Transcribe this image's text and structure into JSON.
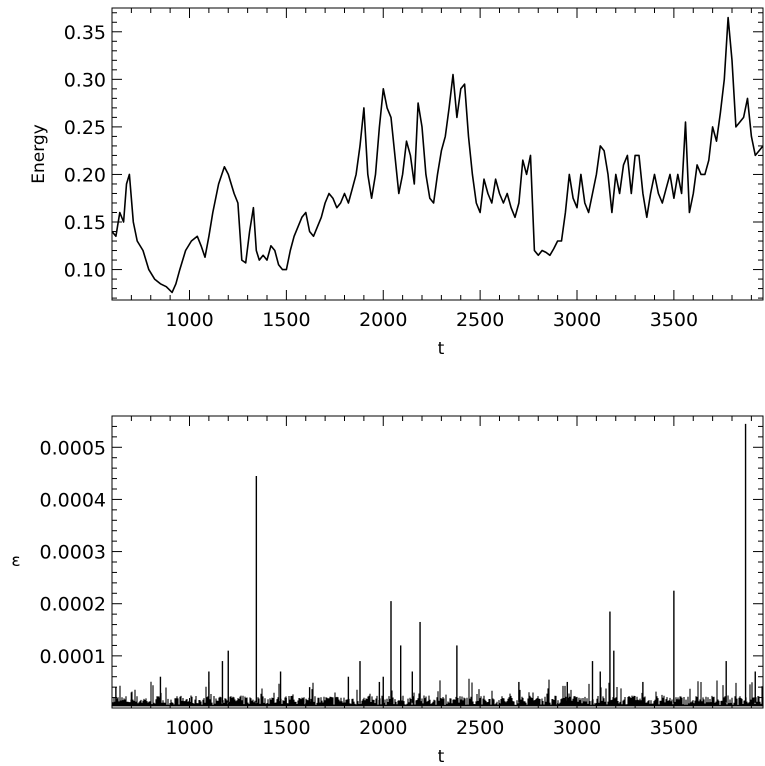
{
  "chart_data": [
    {
      "type": "line",
      "title": "",
      "xlabel": "t",
      "ylabel": "Energy",
      "xlim": [
        600,
        3960
      ],
      "ylim": [
        0.068,
        0.375
      ],
      "xticks": [
        1000,
        1500,
        2000,
        2500,
        3000,
        3500
      ],
      "xtick_labels": [
        "1000",
        "1500",
        "2000",
        "2500",
        "3000",
        "3500"
      ],
      "yticks": [
        0.1,
        0.15,
        0.2,
        0.25,
        0.3,
        0.35
      ],
      "ytick_labels": [
        "0.10",
        "0.15",
        "0.20",
        "0.25",
        "0.30",
        "0.35"
      ],
      "grid": false,
      "series": [
        {
          "x": [
            600,
            620,
            640,
            660,
            675,
            690,
            710,
            730,
            760,
            790,
            820,
            850,
            880,
            910,
            930,
            950,
            980,
            1010,
            1040,
            1060,
            1080,
            1100,
            1120,
            1150,
            1180,
            1200,
            1215,
            1230,
            1250,
            1270,
            1290,
            1310,
            1330,
            1345,
            1360,
            1380,
            1400,
            1420,
            1440,
            1460,
            1480,
            1500,
            1520,
            1540,
            1560,
            1580,
            1600,
            1620,
            1640,
            1660,
            1680,
            1700,
            1720,
            1740,
            1760,
            1780,
            1800,
            1820,
            1840,
            1860,
            1880,
            1900,
            1920,
            1940,
            1960,
            1980,
            2000,
            2020,
            2040,
            2060,
            2080,
            2100,
            2120,
            2140,
            2160,
            2180,
            2200,
            2220,
            2240,
            2260,
            2280,
            2300,
            2320,
            2340,
            2360,
            2380,
            2400,
            2420,
            2440,
            2460,
            2480,
            2500,
            2520,
            2540,
            2560,
            2580,
            2600,
            2620,
            2640,
            2660,
            2680,
            2700,
            2720,
            2740,
            2760,
            2780,
            2800,
            2820,
            2840,
            2860,
            2880,
            2900,
            2920,
            2940,
            2960,
            2980,
            3000,
            3020,
            3040,
            3060,
            3080,
            3100,
            3120,
            3140,
            3160,
            3180,
            3200,
            3220,
            3240,
            3260,
            3280,
            3300,
            3320,
            3340,
            3360,
            3380,
            3400,
            3420,
            3440,
            3460,
            3480,
            3500,
            3520,
            3540,
            3560,
            3580,
            3600,
            3620,
            3640,
            3660,
            3680,
            3700,
            3720,
            3740,
            3760,
            3780,
            3800,
            3820,
            3840,
            3860,
            3880,
            3900,
            3920,
            3940,
            3960
          ],
          "y": [
            0.14,
            0.135,
            0.16,
            0.15,
            0.19,
            0.2,
            0.15,
            0.13,
            0.12,
            0.1,
            0.09,
            0.085,
            0.082,
            0.076,
            0.085,
            0.1,
            0.12,
            0.13,
            0.135,
            0.125,
            0.113,
            0.135,
            0.16,
            0.19,
            0.208,
            0.2,
            0.19,
            0.18,
            0.17,
            0.11,
            0.107,
            0.14,
            0.165,
            0.12,
            0.11,
            0.115,
            0.11,
            0.125,
            0.12,
            0.105,
            0.1,
            0.1,
            0.12,
            0.135,
            0.145,
            0.155,
            0.16,
            0.14,
            0.135,
            0.145,
            0.155,
            0.17,
            0.18,
            0.175,
            0.165,
            0.17,
            0.18,
            0.17,
            0.185,
            0.2,
            0.23,
            0.27,
            0.2,
            0.175,
            0.2,
            0.25,
            0.29,
            0.27,
            0.26,
            0.22,
            0.18,
            0.2,
            0.235,
            0.22,
            0.19,
            0.275,
            0.25,
            0.2,
            0.175,
            0.17,
            0.2,
            0.225,
            0.24,
            0.27,
            0.305,
            0.26,
            0.29,
            0.295,
            0.24,
            0.2,
            0.17,
            0.16,
            0.195,
            0.18,
            0.17,
            0.195,
            0.18,
            0.17,
            0.18,
            0.165,
            0.155,
            0.17,
            0.215,
            0.2,
            0.22,
            0.12,
            0.115,
            0.12,
            0.118,
            0.115,
            0.122,
            0.13,
            0.13,
            0.16,
            0.2,
            0.175,
            0.165,
            0.2,
            0.17,
            0.16,
            0.18,
            0.2,
            0.23,
            0.225,
            0.2,
            0.16,
            0.2,
            0.18,
            0.21,
            0.22,
            0.18,
            0.22,
            0.22,
            0.18,
            0.155,
            0.18,
            0.2,
            0.18,
            0.17,
            0.185,
            0.2,
            0.175,
            0.2,
            0.18,
            0.255,
            0.16,
            0.18,
            0.21,
            0.2,
            0.2,
            0.215,
            0.25,
            0.235,
            0.265,
            0.3,
            0.365,
            0.32,
            0.25,
            0.255,
            0.26,
            0.28,
            0.24,
            0.22,
            0.225,
            0.23
          ]
        }
      ]
    },
    {
      "type": "line",
      "title": "",
      "xlabel": "t",
      "ylabel": "ε",
      "xlim": [
        600,
        3960
      ],
      "ylim": [
        0,
        0.00056
      ],
      "xticks": [
        1000,
        1500,
        2000,
        2500,
        3000,
        3500
      ],
      "xtick_labels": [
        "1000",
        "1500",
        "2000",
        "2500",
        "3000",
        "3500"
      ],
      "yticks": [
        0.0001,
        0.0002,
        0.0003,
        0.0004,
        0.0005
      ],
      "ytick_labels": [
        "0.0001",
        "0.0002",
        "0.0003",
        "0.0004",
        "0.0005"
      ],
      "grid": false,
      "baseline": 1e-05,
      "series": [
        {
          "x": [
            620,
            700,
            850,
            1100,
            1170,
            1200,
            1345,
            1470,
            1620,
            1820,
            1880,
            1980,
            2000,
            2040,
            2090,
            2150,
            2190,
            2380,
            2700,
            2950,
            3080,
            3120,
            3170,
            3190,
            3340,
            3500,
            3770,
            3870,
            3920
          ],
          "y": [
            4e-05,
            3e-05,
            6e-05,
            7e-05,
            9e-05,
            0.00011,
            0.000445,
            7e-05,
            4e-05,
            6e-05,
            9e-05,
            5e-05,
            6e-05,
            0.000205,
            0.00012,
            7e-05,
            0.000165,
            0.00012,
            5e-05,
            5e-05,
            9e-05,
            7e-05,
            0.000185,
            0.00011,
            5e-05,
            0.000225,
            9e-05,
            0.000545,
            7e-05
          ]
        }
      ]
    }
  ]
}
